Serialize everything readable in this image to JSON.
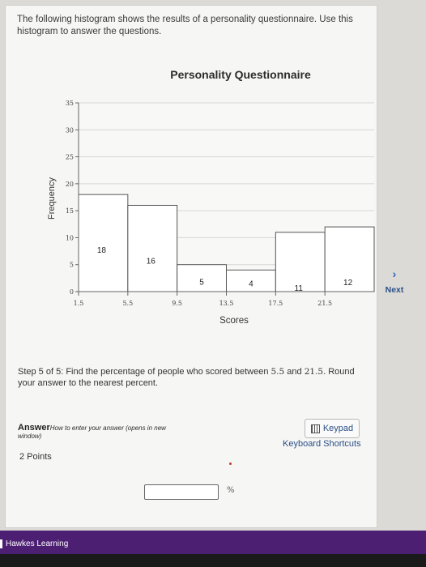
{
  "intro_text": "The following histogram shows the results of a personality questionnaire. Use this histogram to answer the questions.",
  "chart_data": {
    "type": "bar",
    "title": "Personality Questionnaire",
    "xlabel": "Scores",
    "ylabel": "Frequency",
    "bin_edges": [
      1.5,
      5.5,
      9.5,
      13.5,
      17.5,
      21.5,
      25.5
    ],
    "x_tick_labels": [
      "1.5",
      "5.5",
      "9.5",
      "13.5",
      "17.5",
      "21.5"
    ],
    "values": [
      18,
      16,
      5,
      4,
      11,
      12
    ],
    "ylim": [
      0,
      35
    ],
    "y_ticks": [
      0,
      5,
      10,
      15,
      20,
      25,
      30,
      35
    ],
    "grid": true
  },
  "next": {
    "chevron": "›",
    "label": "Next",
    "icon": "chevron-right-icon"
  },
  "step": {
    "prefix": "Step 5 of 5: Find the percentage of people who scored between",
    "low": "5.5",
    "and": "and",
    "high": "21.5",
    "suffix": ". Round your answer to the nearest percent."
  },
  "answer": {
    "label": "Answer",
    "help_line1": "How to enter your answer (opens in new",
    "help_line2": "window)",
    "points": "2 Points",
    "unit": "%",
    "value": ""
  },
  "keypad": {
    "label": "Keypad",
    "icon": "keypad-icon"
  },
  "shortcuts_label": "Keyboard Shortcuts",
  "footer": {
    "brand": "Hawkes Learning",
    "color": "#4d1f73"
  }
}
